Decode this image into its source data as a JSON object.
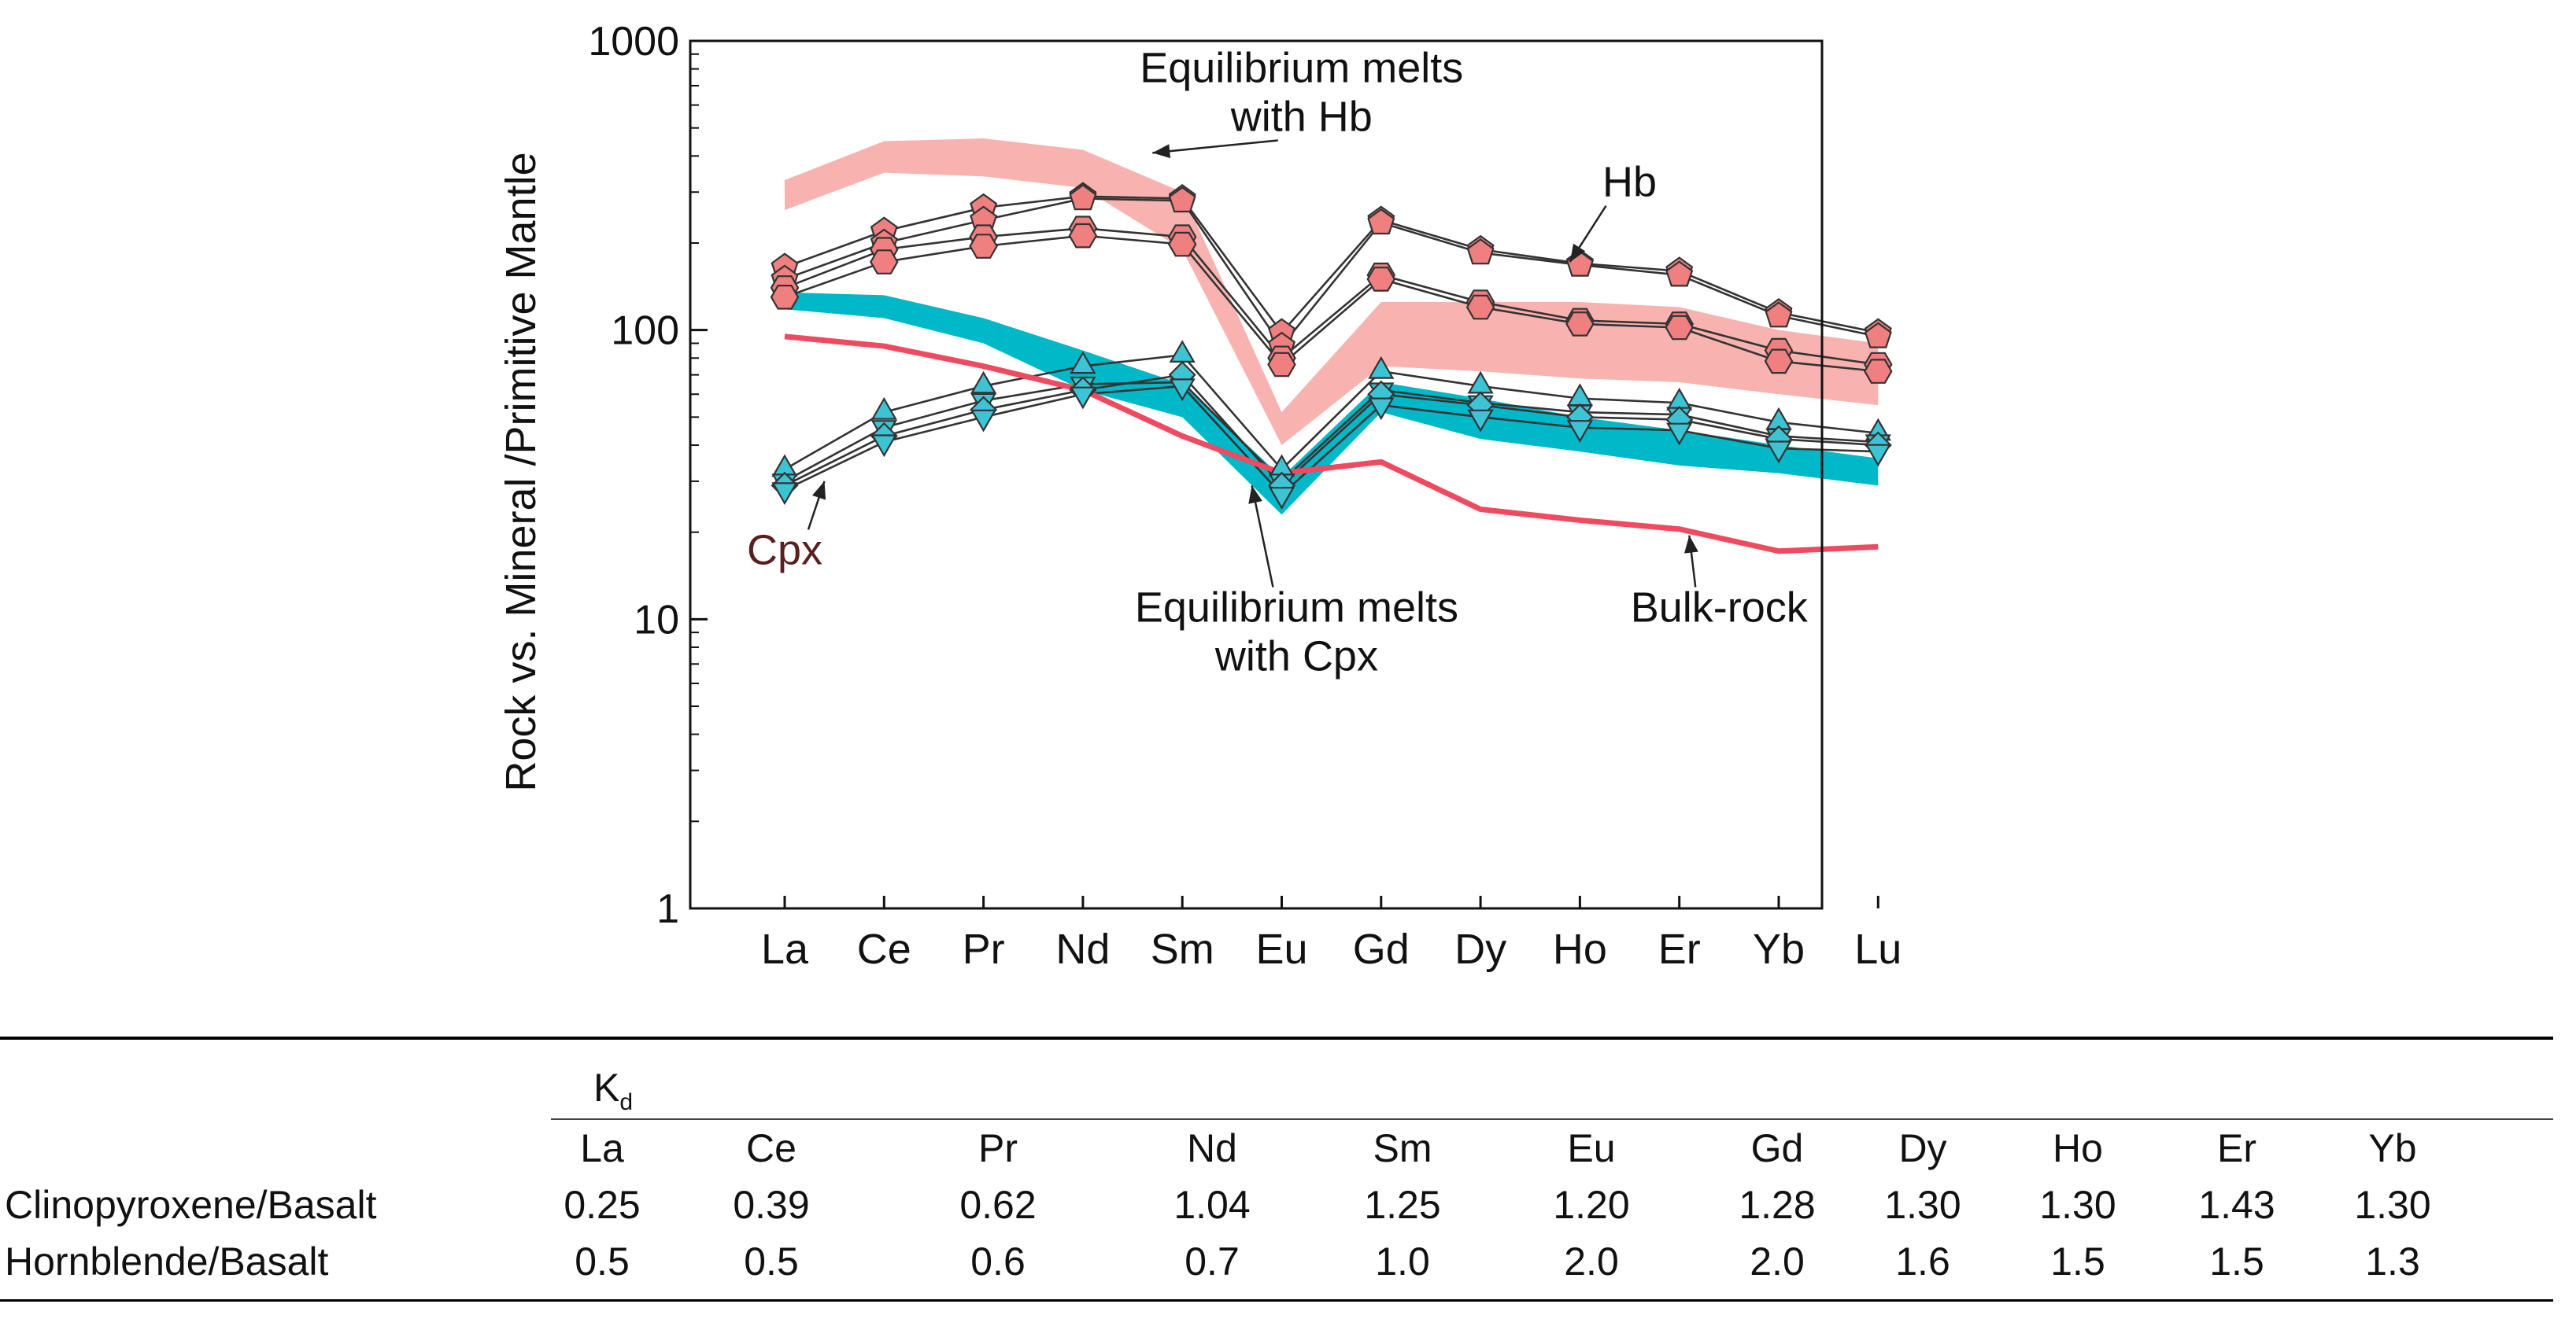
{
  "chart_data": {
    "type": "line",
    "title": "",
    "xlabel": "",
    "ylabel": "Rock vs. Mineral /Primitive Mantle",
    "yscale": "log",
    "ylim": [
      1,
      1000
    ],
    "y_ticks": [
      "1",
      "10",
      "100",
      "1000"
    ],
    "categories": [
      "La",
      "Ce",
      "Pr",
      "Nd",
      "Sm",
      "Eu",
      "Gd",
      "Dy",
      "Ho",
      "Er",
      "Yb",
      "Lu"
    ],
    "grid": false,
    "colors": {
      "hb_band": "#f8b3b0",
      "cpx_band": "#00b8c8",
      "bulk_rock": "#ef4a60",
      "hb_marker": "#f07f7f",
      "cpx_marker": "#3cc4d4",
      "line": "#333333"
    },
    "bands": [
      {
        "name": "Equilibrium melts with Hb",
        "lower": [
          260,
          350,
          340,
          310,
          190,
          40,
          75,
          72,
          68,
          66,
          60,
          55
        ],
        "upper": [
          330,
          450,
          460,
          420,
          300,
          52,
          125,
          125,
          125,
          120,
          100,
          90
        ]
      },
      {
        "name": "Equilibrium melts with Cpx",
        "lower": [
          118,
          110,
          90,
          62,
          50,
          23,
          52,
          42,
          38,
          34,
          32,
          29
        ],
        "upper": [
          135,
          132,
          110,
          85,
          65,
          31,
          66,
          58,
          50,
          45,
          40,
          36
        ]
      }
    ],
    "series": [
      {
        "name": "Hb",
        "group": "Hb",
        "marker": "pentagon",
        "values": [
          165,
          220,
          265,
          290,
          285,
          98,
          240,
          190,
          170,
          160,
          115,
          98
        ]
      },
      {
        "group": "Hb",
        "marker": "pentagon",
        "values": [
          150,
          200,
          240,
          285,
          280,
          88,
          235,
          185,
          168,
          155,
          112,
          95
        ]
      },
      {
        "group": "Hb",
        "marker": "hexagon",
        "values": [
          140,
          190,
          210,
          225,
          210,
          80,
          155,
          125,
          108,
          105,
          85,
          76
        ]
      },
      {
        "group": "Hb",
        "marker": "hexagon",
        "values": [
          130,
          172,
          195,
          212,
          198,
          76,
          150,
          120,
          105,
          102,
          78,
          72
        ]
      },
      {
        "name": "Cpx",
        "group": "Cpx",
        "marker": "triangle-up",
        "values": [
          33,
          52,
          64,
          75,
          82,
          33,
          72,
          64,
          58,
          56,
          48,
          44
        ]
      },
      {
        "group": "Cpx",
        "marker": "triangle-down",
        "values": [
          30,
          46,
          57,
          65,
          66,
          30,
          62,
          56,
          52,
          51,
          43,
          41
        ]
      },
      {
        "group": "Cpx",
        "marker": "diamond",
        "values": [
          29,
          43,
          53,
          62,
          70,
          29,
          60,
          55,
          50,
          49,
          42,
          40
        ]
      },
      {
        "group": "Cpx",
        "marker": "triangle-down",
        "values": [
          28,
          41,
          50,
          60,
          64,
          27,
          55,
          50,
          46,
          45,
          39,
          38
        ]
      },
      {
        "name": "Bulk-rock",
        "group": "Bulk",
        "marker": "none",
        "values": [
          95,
          88,
          75,
          62,
          43,
          32,
          35,
          24,
          22,
          20.5,
          17.2,
          17.8
        ]
      }
    ],
    "annotations": [
      {
        "text": "Equilibrium melts",
        "text2": "with Hb",
        "pos_cat": 5.2,
        "pos_y": 720,
        "arrow_to_cat": 3.7,
        "arrow_to_y": 410
      },
      {
        "text": "Hb",
        "pos_cat": 8.5,
        "pos_y": 290,
        "arrow_to_cat": 7.9,
        "arrow_to_y": 172
      },
      {
        "text": "Cpx",
        "pos_cat": 0.0,
        "pos_y": 15.5,
        "arrow_to_cat": 0.4,
        "arrow_to_y": 30
      },
      {
        "text": "Equilibrium melts",
        "text2": "with Cpx",
        "pos_cat": 5.15,
        "pos_y": 9.8,
        "arrow_to_cat": 4.7,
        "arrow_to_y": 29
      },
      {
        "text": "Bulk-rock",
        "pos_cat": 9.4,
        "pos_y": 9.8,
        "arrow_to_cat": 9.1,
        "arrow_to_y": 19.5
      }
    ]
  },
  "table": {
    "kd_label": "K",
    "kd_sub": "d",
    "columns": [
      "La",
      "Ce",
      "Pr",
      "Nd",
      "Sm",
      "Eu",
      "Gd",
      "Dy",
      "Ho",
      "Er",
      "Yb"
    ],
    "rows": [
      {
        "label": "Clinopyroxene/Basalt",
        "values": [
          "0.25",
          "0.39",
          "0.62",
          "1.04",
          "1.25",
          "1.20",
          "1.28",
          "1.30",
          "1.30",
          "1.43",
          "1.30"
        ]
      },
      {
        "label": "Hornblende/Basalt",
        "values": [
          "0.5",
          "0.5",
          "0.6",
          "0.7",
          "1.0",
          "2.0",
          "2.0",
          "1.6",
          "1.5",
          "1.5",
          "1.3"
        ]
      }
    ]
  }
}
